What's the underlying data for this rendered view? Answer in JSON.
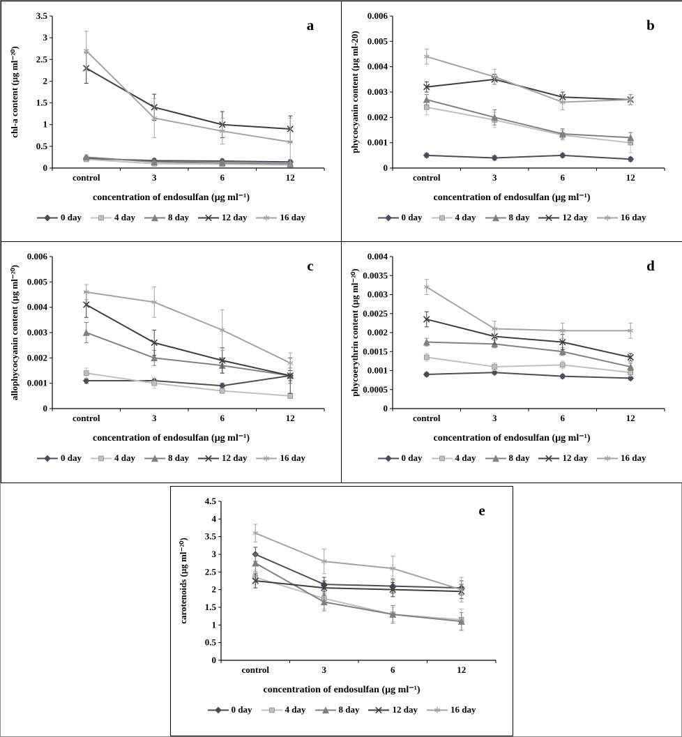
{
  "figure": {
    "panels": [
      "a",
      "b",
      "c",
      "d",
      "e"
    ],
    "background": "#ffffff"
  },
  "series_styles": [
    {
      "name": "0 day",
      "marker": "diamond",
      "color": "#4c4c59"
    },
    {
      "name": "4 day",
      "marker": "square",
      "color": "#bfbfbf"
    },
    {
      "name": "8 day",
      "marker": "triangle",
      "color": "#808080"
    },
    {
      "name": "12 day",
      "marker": "x",
      "color": "#3d3d3d"
    },
    {
      "name": "16 day",
      "marker": "asterisk",
      "color": "#a3a3a3"
    }
  ],
  "chart_data": [
    {
      "type": "line",
      "panel": "a",
      "title": "",
      "ylabel": "chl-a content (µg ml⁻²⁰)",
      "xlabel": "concentration of endosulfan (µg ml⁻¹)",
      "categories": [
        "control",
        "3",
        "6",
        "12"
      ],
      "ylim": [
        0,
        3.5
      ],
      "yticks": [
        "0",
        "0.5",
        "1",
        "1.5",
        "2",
        "2.5",
        "3",
        "3.5"
      ],
      "grid": false,
      "legend_position": "bottom",
      "series": [
        {
          "name": "0 day",
          "values": [
            0.22,
            0.17,
            0.16,
            0.14
          ],
          "errors": [
            0.05,
            0.05,
            0.05,
            0.05
          ]
        },
        {
          "name": "4 day",
          "values": [
            0.2,
            0.1,
            0.09,
            0.07
          ],
          "errors": [
            0.04,
            0.03,
            0.03,
            0.03
          ]
        },
        {
          "name": "8 day",
          "values": [
            0.25,
            0.14,
            0.12,
            0.1
          ],
          "errors": [
            0.05,
            0.04,
            0.04,
            0.04
          ]
        },
        {
          "name": "12 day",
          "values": [
            2.3,
            1.4,
            1.0,
            0.9
          ],
          "errors": [
            0.35,
            0.3,
            0.3,
            0.3
          ]
        },
        {
          "name": "16 day",
          "values": [
            2.7,
            1.15,
            0.85,
            0.6
          ],
          "errors": [
            0.45,
            0.45,
            0.3,
            0.55
          ]
        }
      ]
    },
    {
      "type": "line",
      "panel": "b",
      "title": "",
      "ylabel": "phycocyanin content (µg ml-20)",
      "xlabel": "concentration of endosulfan (µg ml⁻¹)",
      "categories": [
        "control",
        "3",
        "6",
        "12"
      ],
      "ylim": [
        0,
        0.006
      ],
      "yticks": [
        "0",
        "0.001",
        "0.002",
        "0.003",
        "0.004",
        "0.005",
        "0.006"
      ],
      "grid": false,
      "legend_position": "bottom",
      "series": [
        {
          "name": "0 day",
          "values": [
            0.0005,
            0.0004,
            0.0005,
            0.00035
          ],
          "errors": [
            8e-05,
            8e-05,
            8e-05,
            8e-05
          ]
        },
        {
          "name": "4 day",
          "values": [
            0.0024,
            0.0019,
            0.0013,
            0.001
          ],
          "errors": [
            0.0003,
            0.0003,
            0.0002,
            0.0004
          ]
        },
        {
          "name": "8 day",
          "values": [
            0.0027,
            0.002,
            0.00135,
            0.0012
          ],
          "errors": [
            0.0002,
            0.0003,
            0.0002,
            0.0002
          ]
        },
        {
          "name": "12 day",
          "values": [
            0.0032,
            0.0035,
            0.0028,
            0.0027
          ],
          "errors": [
            0.0002,
            0.0002,
            0.0002,
            0.0002
          ]
        },
        {
          "name": "16 day",
          "values": [
            0.0044,
            0.0036,
            0.0026,
            0.0027
          ],
          "errors": [
            0.0003,
            0.0003,
            0.0003,
            0.0002
          ]
        }
      ]
    },
    {
      "type": "line",
      "panel": "c",
      "title": "",
      "ylabel": "allophycocyanin content (µg ml⁻²⁰)",
      "xlabel": "concentration of endosulfan (µg ml⁻¹)",
      "categories": [
        "control",
        "3",
        "6",
        "12"
      ],
      "ylim": [
        0,
        0.006
      ],
      "yticks": [
        "0",
        "0.001",
        "0.002",
        "0.003",
        "0.004",
        "0.005",
        "0.006"
      ],
      "grid": false,
      "legend_position": "bottom",
      "series": [
        {
          "name": "0 day",
          "values": [
            0.0011,
            0.0011,
            0.0009,
            0.0013
          ],
          "errors": [
            0.0001,
            0.0001,
            0.0001,
            0.0002
          ]
        },
        {
          "name": "4 day",
          "values": [
            0.0014,
            0.001,
            0.0007,
            0.0005
          ],
          "errors": [
            0.0002,
            0.0002,
            0.0001,
            0.0001
          ]
        },
        {
          "name": "8 day",
          "values": [
            0.003,
            0.002,
            0.0017,
            0.0013
          ],
          "errors": [
            0.0004,
            0.0003,
            0.0003,
            0.0003
          ]
        },
        {
          "name": "12 day",
          "values": [
            0.0041,
            0.0026,
            0.0019,
            0.0013
          ],
          "errors": [
            0.0005,
            0.0005,
            0.0005,
            0.0007
          ]
        },
        {
          "name": "16 day",
          "values": [
            0.0046,
            0.0042,
            0.0031,
            0.0018
          ],
          "errors": [
            0.0003,
            0.0006,
            0.0008,
            0.0004
          ]
        }
      ]
    },
    {
      "type": "line",
      "panel": "d",
      "title": "",
      "ylabel": "phycoerythrin content (µg ml⁻²⁰)",
      "xlabel": "concentration of endosulfan (µg ml⁻¹)",
      "categories": [
        "control",
        "3",
        "6",
        "12"
      ],
      "ylim": [
        0,
        0.004
      ],
      "yticks": [
        "0",
        "0.0005",
        "0.001",
        "0.0015",
        "0.002",
        "0.0025",
        "0.003",
        "0.0035",
        "0.004"
      ],
      "grid": false,
      "legend_position": "bottom",
      "series": [
        {
          "name": "0 day",
          "values": [
            0.0009,
            0.00095,
            0.00085,
            0.0008
          ],
          "errors": [
            5e-05,
            5e-05,
            5e-05,
            5e-05
          ]
        },
        {
          "name": "4 day",
          "values": [
            0.00135,
            0.0011,
            0.00115,
            0.00095
          ],
          "errors": [
            0.0001,
            0.0001,
            0.0001,
            0.0001
          ]
        },
        {
          "name": "8 day",
          "values": [
            0.00175,
            0.0017,
            0.0015,
            0.0011
          ],
          "errors": [
            0.0001,
            0.0001,
            0.0001,
            0.0001
          ]
        },
        {
          "name": "12 day",
          "values": [
            0.00235,
            0.0019,
            0.00175,
            0.00135
          ],
          "errors": [
            0.0002,
            0.0002,
            0.0002,
            0.0001
          ]
        },
        {
          "name": "16 day",
          "values": [
            0.0032,
            0.0021,
            0.00205,
            0.00205
          ],
          "errors": [
            0.0002,
            0.0002,
            0.0002,
            0.0002
          ]
        }
      ]
    },
    {
      "type": "line",
      "panel": "e",
      "title": "",
      "ylabel": "carotenoids (µg ml⁻²⁰)",
      "xlabel": "concentration of endosulfan (µg ml⁻¹)",
      "categories": [
        "control",
        "3",
        "6",
        "12"
      ],
      "ylim": [
        0,
        4.5
      ],
      "yticks": [
        "0",
        "0.5",
        "1",
        "1.5",
        "2",
        "2.5",
        "3",
        "3.5",
        "4",
        "4.5"
      ],
      "grid": false,
      "legend_position": "bottom",
      "series": [
        {
          "name": "0 day",
          "values": [
            3.0,
            2.15,
            2.1,
            2.05
          ],
          "errors": [
            0.2,
            0.2,
            0.2,
            0.2
          ]
        },
        {
          "name": "4 day",
          "values": [
            2.35,
            1.75,
            1.3,
            1.15
          ],
          "errors": [
            0.2,
            0.3,
            0.2,
            0.3
          ]
        },
        {
          "name": "8 day",
          "values": [
            2.75,
            1.65,
            1.3,
            1.1
          ],
          "errors": [
            0.25,
            0.25,
            0.25,
            0.25
          ]
        },
        {
          "name": "12 day",
          "values": [
            2.25,
            2.05,
            2.0,
            1.95
          ],
          "errors": [
            0.2,
            0.2,
            0.2,
            0.2
          ]
        },
        {
          "name": "16 day",
          "values": [
            3.6,
            2.8,
            2.6,
            2.0
          ],
          "errors": [
            0.25,
            0.35,
            0.35,
            0.35
          ]
        }
      ]
    }
  ]
}
